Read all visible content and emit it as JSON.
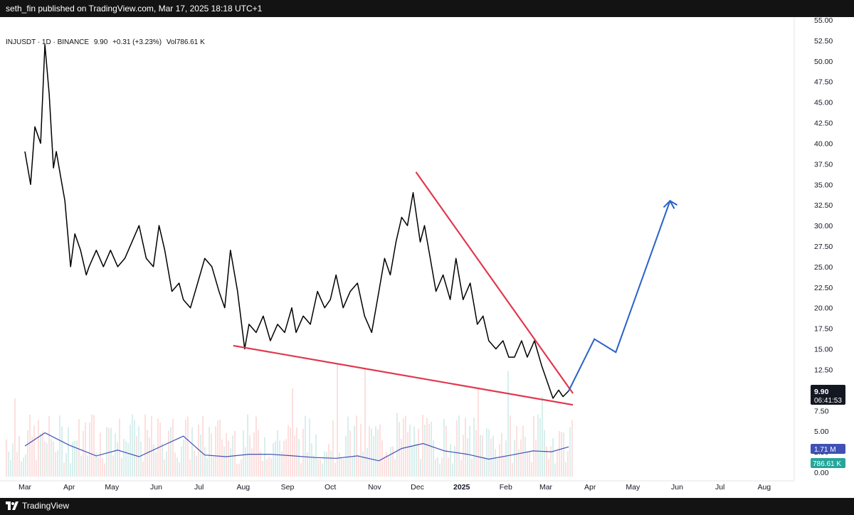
{
  "header": {
    "published": "seth_fin published on TradingView.com, Mar 17, 2025 18:18 UTC+1"
  },
  "legend": {
    "symbol": "INJUSDT · 1D · BINANCE",
    "price": "9.90",
    "change": "+0.31 (+3.23%)",
    "volume": "Vol786.61 K"
  },
  "footer": {
    "brand": "TradingView"
  },
  "colors": {
    "price_line": "#000000",
    "trendline": "#e0384f",
    "projection": "#2962c9",
    "volume_ma": "#3f51b5",
    "volume_up": "#26a69a",
    "volume_down": "#ef5350",
    "badge_dark": "#131722",
    "badge_blue": "#3f51b5",
    "badge_teal": "#26a69a"
  },
  "chart_data": {
    "type": "line",
    "title": "",
    "xlabel": "",
    "ylabel": "",
    "x_ticks": [
      "Mar",
      "Apr",
      "May",
      "Jun",
      "Jul",
      "Aug",
      "Sep",
      "Oct",
      "Nov",
      "Dec",
      "2025",
      "Feb",
      "Mar",
      "Apr",
      "May",
      "Jun",
      "Jul",
      "Aug"
    ],
    "y_ticks": [
      "55.00",
      "52.50",
      "50.00",
      "47.50",
      "45.00",
      "42.50",
      "40.00",
      "37.50",
      "35.00",
      "32.50",
      "30.00",
      "27.50",
      "25.00",
      "22.50",
      "20.00",
      "17.50",
      "15.00",
      "12.50",
      "10.00",
      "7.50",
      "5.00",
      "2.50",
      "0.00"
    ],
    "ylim": [
      0,
      55
    ],
    "grid": false,
    "series": [
      {
        "kind": "price",
        "x": [
          "2024-03-01",
          "2024-03-05",
          "2024-03-08",
          "2024-03-12",
          "2024-03-15",
          "2024-03-18",
          "2024-03-21",
          "2024-03-23",
          "2024-03-26",
          "2024-03-29",
          "2024-04-02",
          "2024-04-05",
          "2024-04-09",
          "2024-04-13",
          "2024-04-15",
          "2024-04-20",
          "2024-04-25",
          "2024-04-30",
          "2024-05-05",
          "2024-05-10",
          "2024-05-15",
          "2024-05-20",
          "2024-05-25",
          "2024-05-30",
          "2024-06-03",
          "2024-06-07",
          "2024-06-12",
          "2024-06-17",
          "2024-06-20",
          "2024-06-25",
          "2024-06-30",
          "2024-07-05",
          "2024-07-10",
          "2024-07-15",
          "2024-07-19",
          "2024-07-23",
          "2024-07-28",
          "2024-08-02",
          "2024-08-05",
          "2024-08-10",
          "2024-08-15",
          "2024-08-20",
          "2024-08-25",
          "2024-08-30",
          "2024-09-04",
          "2024-09-07",
          "2024-09-12",
          "2024-09-17",
          "2024-09-22",
          "2024-09-27",
          "2024-10-01",
          "2024-10-05",
          "2024-10-10",
          "2024-10-15",
          "2024-10-20",
          "2024-10-25",
          "2024-10-30",
          "2024-11-04",
          "2024-11-08",
          "2024-11-12",
          "2024-11-16",
          "2024-11-20",
          "2024-11-24",
          "2024-11-28",
          "2024-12-03",
          "2024-12-06",
          "2024-12-10",
          "2024-12-14",
          "2024-12-19",
          "2024-12-24",
          "2024-12-28",
          "2025-01-02",
          "2025-01-07",
          "2025-01-12",
          "2025-01-16",
          "2025-01-20",
          "2025-01-25",
          "2025-01-30",
          "2025-02-03",
          "2025-02-07",
          "2025-02-12",
          "2025-02-16",
          "2025-02-21",
          "2025-02-26",
          "2025-03-02",
          "2025-03-06",
          "2025-03-10",
          "2025-03-13",
          "2025-03-17"
        ],
        "y": [
          39,
          35,
          42,
          40,
          52,
          46,
          37,
          39,
          36,
          33,
          25,
          29,
          27,
          24,
          25,
          27,
          25,
          27,
          25,
          26,
          28,
          30,
          26,
          25,
          30,
          27,
          22,
          23,
          21,
          20,
          23,
          26,
          25,
          22,
          20,
          27,
          22,
          15,
          18,
          17,
          19,
          16,
          18,
          17,
          20,
          17,
          19,
          18,
          22,
          20,
          21,
          24,
          20,
          22,
          23,
          19,
          17,
          22,
          26,
          24,
          28,
          31,
          30,
          34,
          28,
          30,
          26,
          22,
          24,
          21,
          26,
          21,
          23,
          18,
          19,
          16,
          15,
          16,
          14,
          14,
          16,
          14,
          16,
          13,
          11,
          9.0,
          10,
          9.2,
          9.9
        ]
      },
      {
        "kind": "trendline_upper",
        "x": [
          "2024-11-30",
          "2025-03-20"
        ],
        "y": [
          36.5,
          9.6
        ]
      },
      {
        "kind": "trendline_lower",
        "x": [
          "2024-07-25",
          "2025-03-20"
        ],
        "y": [
          15.4,
          8.2
        ]
      },
      {
        "kind": "projection",
        "x": [
          "2025-03-17",
          "2025-04-04",
          "2025-04-19",
          "2025-05-27",
          "2025-06-01"
        ],
        "y": [
          9.9,
          16.2,
          14.6,
          33.0,
          32.5
        ]
      },
      {
        "kind": "volume_ma",
        "x": [
          "2024-03-01",
          "2024-03-15",
          "2024-04-01",
          "2024-04-20",
          "2024-05-05",
          "2024-05-20",
          "2024-06-05",
          "2024-06-20",
          "2024-07-05",
          "2024-07-20",
          "2024-08-05",
          "2024-08-20",
          "2024-09-05",
          "2024-09-20",
          "2024-10-05",
          "2024-10-20",
          "2024-11-04",
          "2024-11-20",
          "2024-12-05",
          "2024-12-20",
          "2025-01-05",
          "2025-01-20",
          "2025-02-05",
          "2025-02-20",
          "2025-03-05",
          "2025-03-17"
        ],
        "y": [
          3.2,
          4.8,
          3.3,
          2.0,
          2.7,
          1.9,
          3.2,
          4.4,
          2.1,
          1.9,
          2.2,
          2.2,
          2.0,
          1.8,
          1.7,
          2.0,
          1.4,
          2.9,
          3.5,
          2.6,
          2.2,
          1.6,
          2.1,
          2.6,
          2.5,
          3.1
        ]
      }
    ]
  },
  "price_axis": {
    "current_price": "9.90",
    "countdown": "06:41:53",
    "volume_ma_label": "1.71 M",
    "volume_label": "786.61 K"
  }
}
